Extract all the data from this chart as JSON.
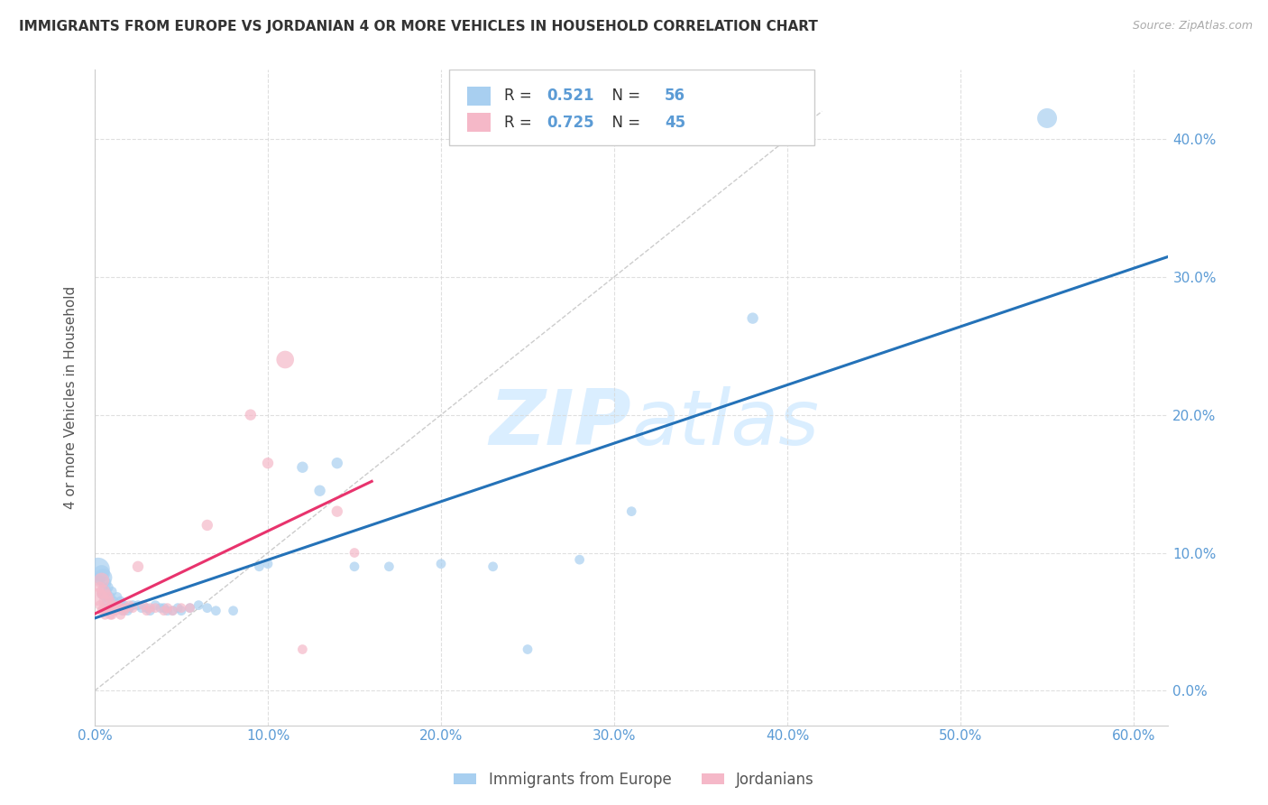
{
  "title": "IMMIGRANTS FROM EUROPE VS JORDANIAN 4 OR MORE VEHICLES IN HOUSEHOLD CORRELATION CHART",
  "source": "Source: ZipAtlas.com",
  "tick_color": "#5b9bd5",
  "ylabel": "4 or more Vehicles in Household",
  "xlim": [
    0.0,
    0.62
  ],
  "ylim": [
    -0.025,
    0.45
  ],
  "yticks": [
    0.0,
    0.1,
    0.2,
    0.3,
    0.4
  ],
  "xticks": [
    0.0,
    0.1,
    0.2,
    0.3,
    0.4,
    0.5,
    0.6
  ],
  "blue_R": "0.521",
  "blue_N": "56",
  "pink_R": "0.725",
  "pink_N": "45",
  "blue_color": "#a8cff0",
  "pink_color": "#f5b8c8",
  "blue_line_color": "#2472b8",
  "pink_line_color": "#e8336d",
  "watermark_color": "#daeeff",
  "blue_scatter": [
    [
      0.002,
      0.088
    ],
    [
      0.003,
      0.08
    ],
    [
      0.004,
      0.085
    ],
    [
      0.004,
      0.07
    ],
    [
      0.005,
      0.082
    ],
    [
      0.005,
      0.075
    ],
    [
      0.006,
      0.078
    ],
    [
      0.006,
      0.068
    ],
    [
      0.007,
      0.072
    ],
    [
      0.007,
      0.065
    ],
    [
      0.008,
      0.075
    ],
    [
      0.008,
      0.06
    ],
    [
      0.009,
      0.068
    ],
    [
      0.01,
      0.072
    ],
    [
      0.01,
      0.058
    ],
    [
      0.011,
      0.065
    ],
    [
      0.012,
      0.062
    ],
    [
      0.013,
      0.068
    ],
    [
      0.014,
      0.06
    ],
    [
      0.015,
      0.065
    ],
    [
      0.016,
      0.058
    ],
    [
      0.017,
      0.062
    ],
    [
      0.018,
      0.06
    ],
    [
      0.019,
      0.058
    ],
    [
      0.02,
      0.06
    ],
    [
      0.022,
      0.062
    ],
    [
      0.025,
      0.062
    ],
    [
      0.027,
      0.06
    ],
    [
      0.03,
      0.06
    ],
    [
      0.032,
      0.058
    ],
    [
      0.035,
      0.062
    ],
    [
      0.038,
      0.06
    ],
    [
      0.04,
      0.06
    ],
    [
      0.042,
      0.058
    ],
    [
      0.045,
      0.058
    ],
    [
      0.048,
      0.06
    ],
    [
      0.05,
      0.058
    ],
    [
      0.055,
      0.06
    ],
    [
      0.06,
      0.062
    ],
    [
      0.065,
      0.06
    ],
    [
      0.07,
      0.058
    ],
    [
      0.08,
      0.058
    ],
    [
      0.095,
      0.09
    ],
    [
      0.1,
      0.092
    ],
    [
      0.12,
      0.162
    ],
    [
      0.13,
      0.145
    ],
    [
      0.14,
      0.165
    ],
    [
      0.15,
      0.09
    ],
    [
      0.17,
      0.09
    ],
    [
      0.2,
      0.092
    ],
    [
      0.23,
      0.09
    ],
    [
      0.25,
      0.03
    ],
    [
      0.28,
      0.095
    ],
    [
      0.31,
      0.13
    ],
    [
      0.38,
      0.27
    ],
    [
      0.55,
      0.415
    ]
  ],
  "blue_sizes": [
    350,
    60,
    180,
    60,
    200,
    60,
    100,
    60,
    60,
    60,
    60,
    60,
    60,
    60,
    60,
    60,
    60,
    60,
    60,
    60,
    60,
    60,
    60,
    60,
    60,
    60,
    60,
    60,
    60,
    60,
    60,
    60,
    60,
    60,
    60,
    60,
    60,
    60,
    60,
    60,
    60,
    60,
    60,
    60,
    80,
    80,
    80,
    60,
    60,
    60,
    60,
    60,
    60,
    60,
    80,
    250
  ],
  "pink_scatter": [
    [
      0.002,
      0.068
    ],
    [
      0.003,
      0.075
    ],
    [
      0.003,
      0.062
    ],
    [
      0.004,
      0.08
    ],
    [
      0.004,
      0.07
    ],
    [
      0.004,
      0.058
    ],
    [
      0.005,
      0.072
    ],
    [
      0.005,
      0.06
    ],
    [
      0.006,
      0.065
    ],
    [
      0.006,
      0.055
    ],
    [
      0.007,
      0.07
    ],
    [
      0.007,
      0.058
    ],
    [
      0.008,
      0.068
    ],
    [
      0.008,
      0.06
    ],
    [
      0.009,
      0.065
    ],
    [
      0.009,
      0.055
    ],
    [
      0.01,
      0.062
    ],
    [
      0.01,
      0.055
    ],
    [
      0.011,
      0.06
    ],
    [
      0.012,
      0.058
    ],
    [
      0.013,
      0.062
    ],
    [
      0.014,
      0.06
    ],
    [
      0.015,
      0.055
    ],
    [
      0.016,
      0.06
    ],
    [
      0.017,
      0.058
    ],
    [
      0.018,
      0.06
    ],
    [
      0.02,
      0.062
    ],
    [
      0.022,
      0.06
    ],
    [
      0.025,
      0.09
    ],
    [
      0.028,
      0.062
    ],
    [
      0.03,
      0.058
    ],
    [
      0.032,
      0.06
    ],
    [
      0.035,
      0.06
    ],
    [
      0.04,
      0.058
    ],
    [
      0.042,
      0.06
    ],
    [
      0.045,
      0.058
    ],
    [
      0.05,
      0.06
    ],
    [
      0.055,
      0.06
    ],
    [
      0.065,
      0.12
    ],
    [
      0.09,
      0.2
    ],
    [
      0.1,
      0.165
    ],
    [
      0.11,
      0.24
    ],
    [
      0.12,
      0.03
    ],
    [
      0.14,
      0.13
    ],
    [
      0.15,
      0.1
    ]
  ],
  "pink_sizes": [
    200,
    80,
    60,
    150,
    60,
    60,
    120,
    60,
    100,
    60,
    60,
    60,
    60,
    60,
    60,
    60,
    60,
    60,
    60,
    60,
    60,
    60,
    60,
    60,
    60,
    60,
    60,
    60,
    80,
    60,
    60,
    60,
    60,
    60,
    60,
    60,
    60,
    60,
    80,
    80,
    80,
    200,
    60,
    80,
    60
  ]
}
